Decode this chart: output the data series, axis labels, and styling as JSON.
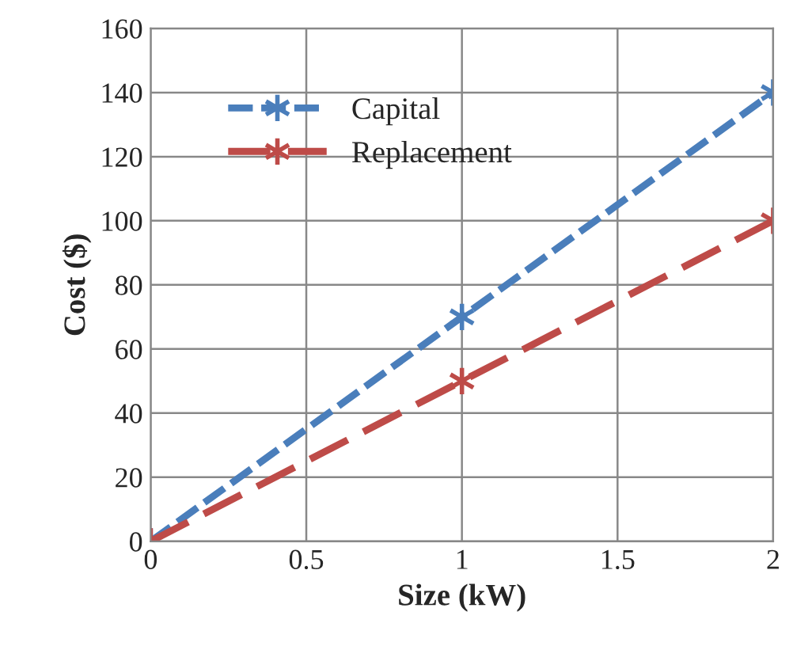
{
  "chart_data": {
    "type": "line",
    "xlabel": "Size (kW)",
    "ylabel": "Cost ($)",
    "x": [
      0,
      1,
      2
    ],
    "series": [
      {
        "name": "Capital",
        "color": "#4a7ebb",
        "values": [
          0,
          70,
          140
        ],
        "line_style": "dashed"
      },
      {
        "name": "Replacement",
        "color": "#be4b48",
        "values": [
          0,
          50,
          100
        ],
        "line_style": "dashed"
      }
    ],
    "xlim": [
      0,
      2
    ],
    "xticks": [
      0,
      0.5,
      1,
      1.5,
      2
    ],
    "ylim": [
      0,
      160
    ],
    "yticks": [
      0,
      20,
      40,
      60,
      80,
      100,
      120,
      140,
      160
    ],
    "grid": true,
    "legend": "top left",
    "marker": "cross"
  }
}
